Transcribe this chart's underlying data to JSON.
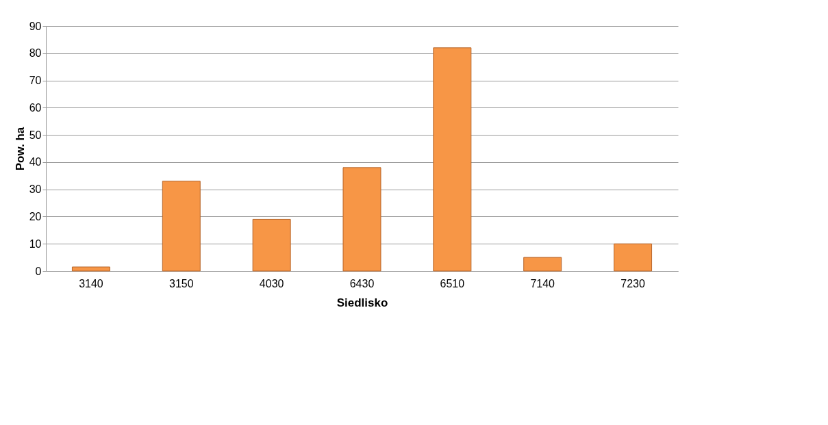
{
  "chart_data": {
    "type": "bar",
    "xlabel": "Siedlisko",
    "ylabel": "Pow. ha",
    "categories": [
      "3140",
      "3150",
      "4030",
      "6430",
      "6510",
      "7140",
      "7230"
    ],
    "values": [
      1.5,
      33,
      19,
      38,
      82,
      5,
      10
    ],
    "color": "#f79646",
    "ylim": [
      0,
      90
    ],
    "yticks": [
      0,
      10,
      20,
      30,
      40,
      50,
      60,
      70,
      80,
      90
    ],
    "grid": "y"
  }
}
